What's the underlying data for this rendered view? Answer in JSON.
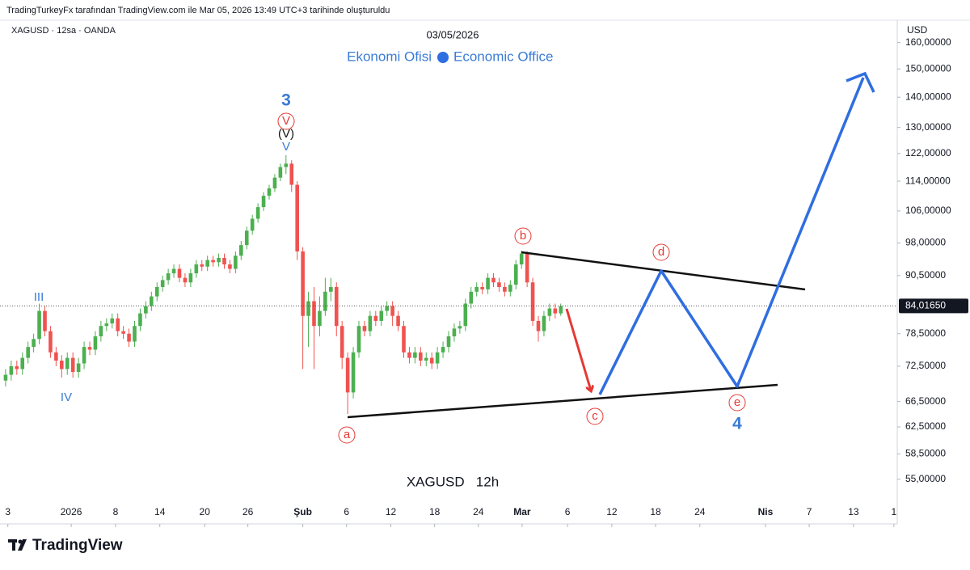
{
  "header": {
    "credit": "TradingTurkeyFx tarafından TradingView.com ile Mar 05, 2026 13:49 UTC+3 tarihinde oluşturuldu",
    "symbol": "XAGUSD · 12sa · OANDA",
    "date": "03/05/2026",
    "brand_left": "Ekonomi Ofisi",
    "brand_right": "Economic Office"
  },
  "chart_data": {
    "type": "candlestick",
    "watermark": "XAGUSD   12h",
    "currency": "USD",
    "log_scale": true,
    "grid": false,
    "up_color": "#4caf50",
    "down_color": "#ef5350",
    "x": [
      1,
      2,
      3,
      4,
      5,
      6,
      7,
      8,
      9,
      10,
      11,
      12,
      13,
      14,
      15,
      16,
      17,
      18,
      19,
      20,
      21,
      22,
      23,
      24,
      25,
      26,
      27,
      28,
      29,
      30,
      31,
      32,
      33,
      34,
      35,
      36,
      37,
      38,
      39,
      40,
      41,
      42,
      43,
      44,
      45,
      46,
      47,
      48,
      49,
      50,
      51,
      52,
      53,
      54,
      55,
      56,
      57,
      58,
      59,
      60,
      61,
      62,
      63,
      64,
      65,
      66,
      67,
      68,
      69,
      70,
      71,
      72,
      73,
      74,
      75,
      76,
      77,
      78,
      79,
      80,
      81,
      82,
      83,
      84,
      85,
      86,
      87,
      88,
      89,
      90,
      91,
      92,
      93,
      94,
      95,
      96,
      97,
      98,
      99,
      100
    ],
    "ohlc": [
      [
        70,
        72,
        69,
        71
      ],
      [
        71,
        73.5,
        70,
        72.5
      ],
      [
        72.5,
        73.5,
        71,
        72
      ],
      [
        72,
        75,
        71,
        74
      ],
      [
        74,
        77,
        73,
        76
      ],
      [
        76,
        78.5,
        75,
        77.5
      ],
      [
        77.5,
        84.5,
        76.5,
        83
      ],
      [
        83,
        84,
        78,
        79
      ],
      [
        79,
        80,
        74,
        75
      ],
      [
        75,
        76,
        72.5,
        73.5
      ],
      [
        73.5,
        74.5,
        70.5,
        72
      ],
      [
        72,
        75,
        71,
        74
      ],
      [
        74,
        75,
        70.5,
        71.5
      ],
      [
        71.5,
        74,
        70.5,
        73
      ],
      [
        73,
        77,
        72,
        76
      ],
      [
        76,
        77,
        74.5,
        75.5
      ],
      [
        75.5,
        79,
        74.5,
        78
      ],
      [
        78,
        81,
        77,
        80
      ],
      [
        80,
        81.5,
        79,
        80.5
      ],
      [
        80.5,
        82.5,
        79.5,
        81.5
      ],
      [
        81.5,
        82.5,
        78,
        79
      ],
      [
        79,
        80,
        77.5,
        78.5
      ],
      [
        78.5,
        79.5,
        76,
        77
      ],
      [
        77,
        81,
        76,
        80
      ],
      [
        80,
        83.5,
        79,
        82.5
      ],
      [
        82.5,
        85,
        81.5,
        84
      ],
      [
        84,
        87,
        83,
        86
      ],
      [
        86,
        89,
        85,
        88
      ],
      [
        88,
        90.5,
        87,
        89.5
      ],
      [
        89.5,
        92,
        88.5,
        91
      ],
      [
        91,
        93,
        90,
        92
      ],
      [
        92,
        93,
        89,
        90
      ],
      [
        90,
        91,
        88,
        89
      ],
      [
        89,
        92,
        88,
        91
      ],
      [
        91,
        94,
        90,
        93
      ],
      [
        93,
        94,
        91.5,
        92.5
      ],
      [
        92.5,
        95,
        91.5,
        94
      ],
      [
        94,
        95,
        92.5,
        93.5
      ],
      [
        93.5,
        95.5,
        92.5,
        94.5
      ],
      [
        94.5,
        95.5,
        92,
        93
      ],
      [
        93,
        94,
        91,
        92
      ],
      [
        92,
        96,
        91,
        95
      ],
      [
        95,
        98.5,
        94,
        97.5
      ],
      [
        97.5,
        102,
        96.5,
        101
      ],
      [
        101,
        105,
        100,
        104
      ],
      [
        104,
        108,
        103,
        107
      ],
      [
        107,
        111,
        106,
        110
      ],
      [
        110,
        113,
        109,
        112
      ],
      [
        112,
        116,
        111,
        115
      ],
      [
        115,
        119,
        114,
        118
      ],
      [
        118,
        121.5,
        116,
        119
      ],
      [
        119,
        120,
        111,
        113
      ],
      [
        113,
        114,
        94,
        96
      ],
      [
        96,
        97,
        72,
        82
      ],
      [
        82,
        87,
        76,
        85
      ],
      [
        85,
        88,
        72,
        80
      ],
      [
        80,
        86,
        78,
        83
      ],
      [
        83,
        90,
        82,
        87
      ],
      [
        87,
        90,
        85,
        88
      ],
      [
        88,
        89,
        78,
        80
      ],
      [
        80,
        81,
        72,
        74
      ],
      [
        74,
        75,
        64.5,
        68
      ],
      [
        68,
        76,
        67,
        75
      ],
      [
        75,
        81,
        74,
        80
      ],
      [
        80,
        81,
        78,
        79
      ],
      [
        79,
        83,
        78,
        82
      ],
      [
        82,
        83,
        80,
        81
      ],
      [
        81,
        84,
        80,
        83
      ],
      [
        83,
        85,
        82,
        84
      ],
      [
        84,
        85,
        80,
        82
      ],
      [
        82,
        83,
        79,
        80
      ],
      [
        80,
        81,
        74,
        75
      ],
      [
        75,
        76,
        73,
        74
      ],
      [
        74,
        76,
        73,
        75
      ],
      [
        75,
        76,
        72.5,
        73.5
      ],
      [
        73.5,
        75,
        72.5,
        74
      ],
      [
        74,
        75,
        72,
        73
      ],
      [
        73,
        76,
        72,
        75
      ],
      [
        75,
        77,
        74,
        76
      ],
      [
        76,
        79,
        75,
        78
      ],
      [
        78,
        80.5,
        77,
        79.5
      ],
      [
        79.5,
        81,
        78.5,
        80
      ],
      [
        80,
        85.5,
        79,
        84.5
      ],
      [
        84.5,
        88,
        83.5,
        87
      ],
      [
        87,
        89,
        86,
        88
      ],
      [
        88,
        89,
        86.5,
        87.5
      ],
      [
        87.5,
        91,
        86.5,
        90
      ],
      [
        90,
        91,
        88,
        89
      ],
      [
        89,
        90,
        87,
        88
      ],
      [
        88,
        89,
        86,
        87
      ],
      [
        87,
        89.5,
        86,
        88.5
      ],
      [
        88.5,
        94,
        87.5,
        93
      ],
      [
        93,
        96.2,
        92,
        95.5
      ],
      [
        95.5,
        96,
        88,
        89
      ],
      [
        89,
        90,
        80,
        81
      ],
      [
        81,
        82,
        77,
        79
      ],
      [
        79,
        83,
        78,
        82
      ],
      [
        82,
        84.5,
        81,
        83.5
      ],
      [
        83.5,
        84.5,
        81.5,
        82.5
      ],
      [
        82.5,
        84.5,
        82,
        84
      ]
    ],
    "xlim": [
      0,
      160
    ],
    "xticks": [
      {
        "value": 1.4,
        "label": "3"
      },
      {
        "value": 12.7,
        "label": "2026"
      },
      {
        "value": 20.6,
        "label": "8"
      },
      {
        "value": 28.5,
        "label": "14"
      },
      {
        "value": 36.5,
        "label": "20"
      },
      {
        "value": 44.2,
        "label": "26"
      },
      {
        "value": 54,
        "label": "Şub"
      },
      {
        "value": 61.8,
        "label": "6"
      },
      {
        "value": 69.7,
        "label": "12"
      },
      {
        "value": 77.5,
        "label": "18"
      },
      {
        "value": 85.3,
        "label": "24"
      },
      {
        "value": 93.1,
        "label": "Mar"
      },
      {
        "value": 101.2,
        "label": "6"
      },
      {
        "value": 109.1,
        "label": "12"
      },
      {
        "value": 116.9,
        "label": "18"
      },
      {
        "value": 124.8,
        "label": "24"
      },
      {
        "value": 136.5,
        "label": "Nis"
      },
      {
        "value": 144.3,
        "label": "7"
      },
      {
        "value": 152.2,
        "label": "13"
      },
      {
        "value": 159.4,
        "label": "1"
      }
    ],
    "ylim": [
      49.3,
      169
    ],
    "yticks": [
      {
        "value": 160,
        "label": "160,00000"
      },
      {
        "value": 150,
        "label": "150,00000"
      },
      {
        "value": 140,
        "label": "140,00000"
      },
      {
        "value": 130,
        "label": "130,00000"
      },
      {
        "value": 122,
        "label": "122,00000"
      },
      {
        "value": 114,
        "label": "114,00000"
      },
      {
        "value": 106,
        "label": "106,00000"
      },
      {
        "value": 98,
        "label": "98,00000"
      },
      {
        "value": 90.5,
        "label": "90,50000"
      },
      {
        "value": 78.5,
        "label": "78,50000"
      },
      {
        "value": 72.5,
        "label": "72,50000"
      },
      {
        "value": 66.5,
        "label": "66,50000"
      },
      {
        "value": 62.5,
        "label": "62,50000"
      },
      {
        "value": 58.5,
        "label": "58,50000"
      },
      {
        "value": 55,
        "label": "55,00000"
      }
    ],
    "last_price": {
      "value": 84.0165,
      "label": "84,01650"
    },
    "annotations": {
      "wave3": "3",
      "wave_v_circled": "V",
      "wave_v_paren": "(V)",
      "wave_v": "V",
      "wave_iii": "III",
      "wave_iv": "IV",
      "a": "a",
      "b": "b",
      "c": "c",
      "d": "d",
      "e": "e",
      "wave4": "4"
    }
  },
  "footer": {
    "logo": "TradingView"
  }
}
